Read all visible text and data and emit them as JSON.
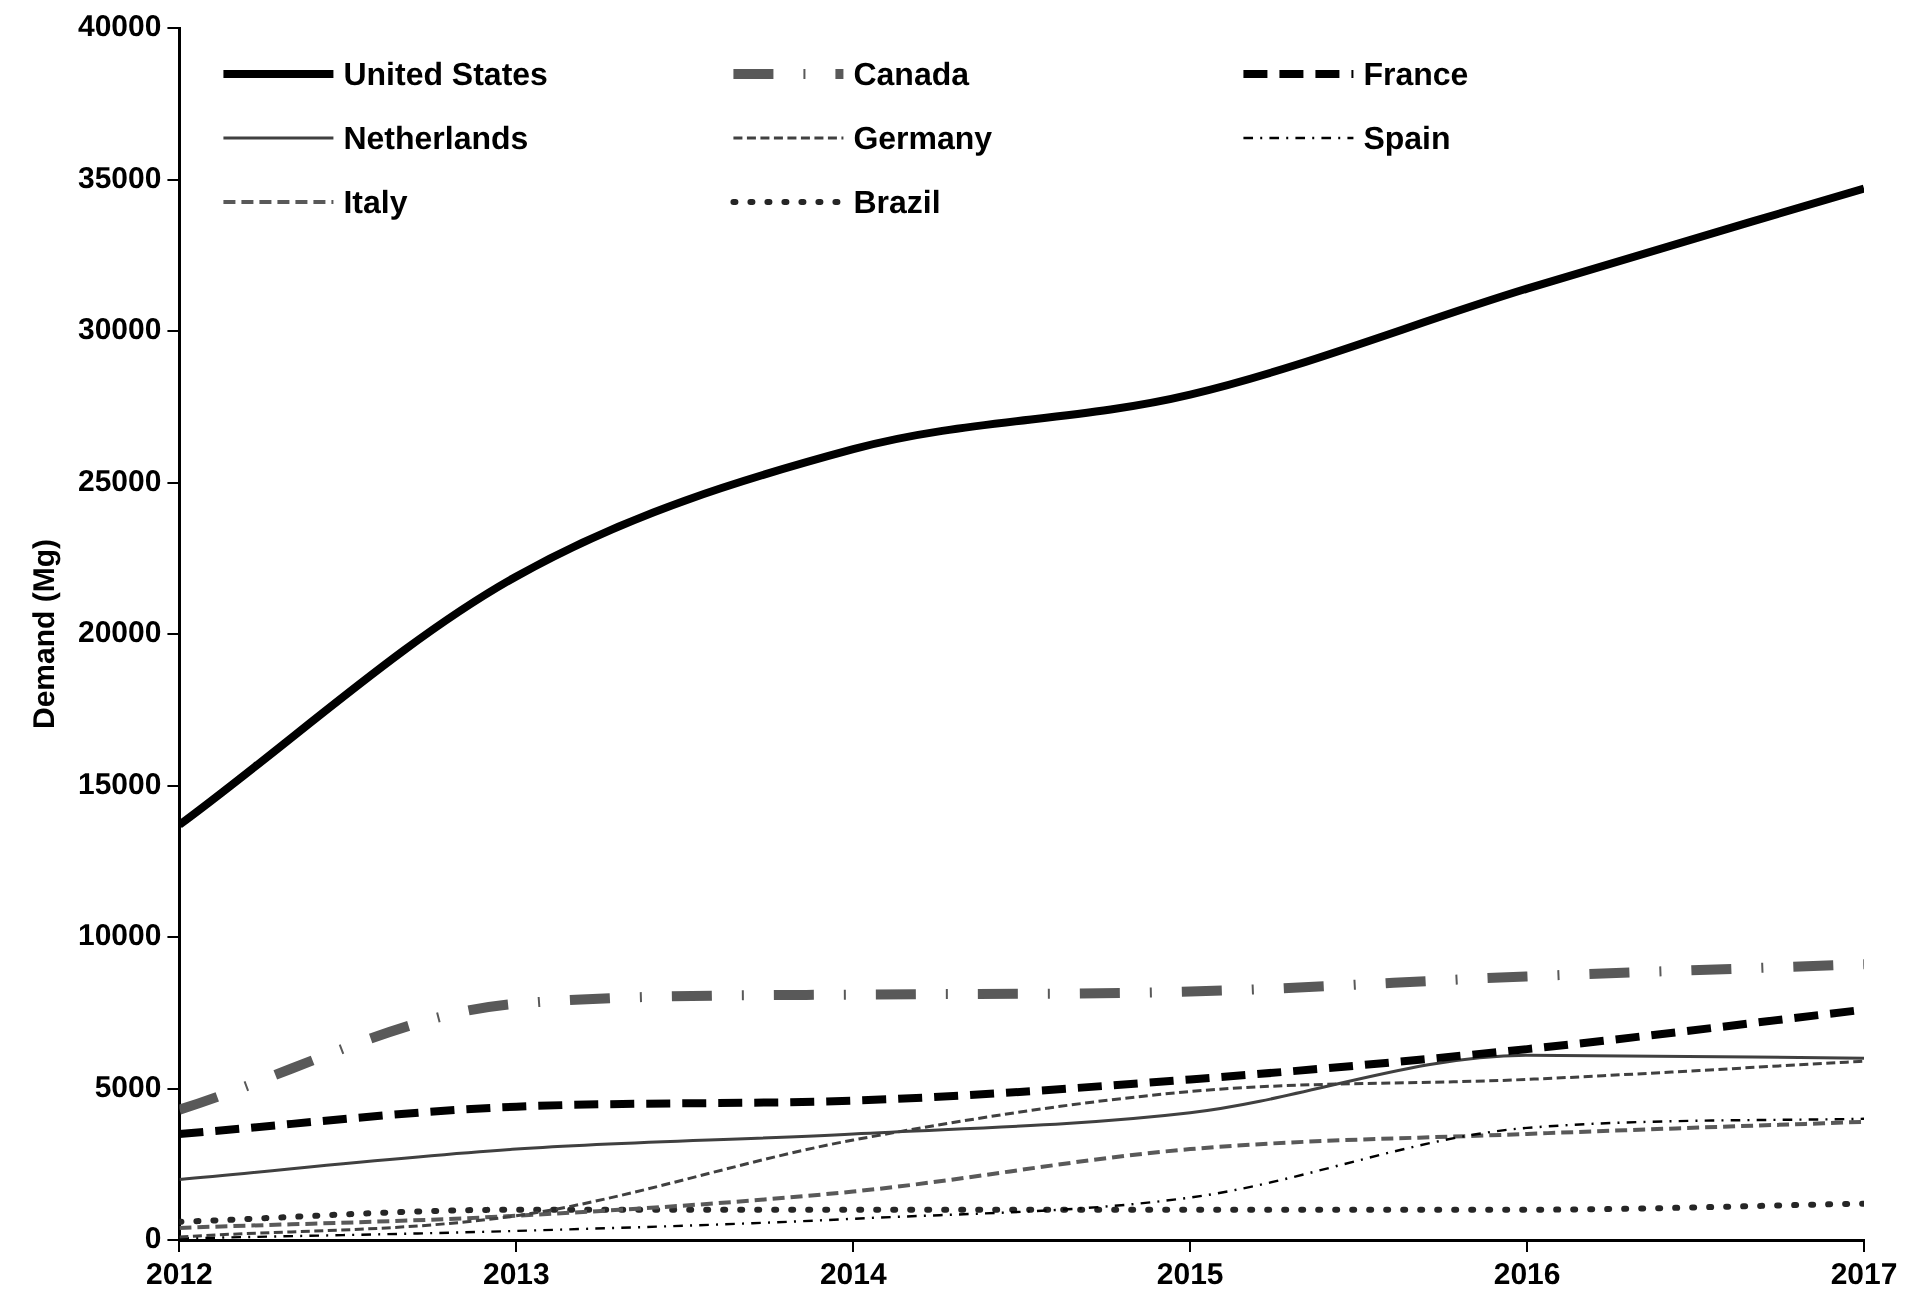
{
  "chart_data": {
    "type": "line",
    "ylabel": "Demand (Mg)",
    "x": [
      2012,
      2013,
      2014,
      2015,
      2016,
      2017
    ],
    "xlim": [
      2012,
      2017
    ],
    "xticks": [
      2012,
      2013,
      2014,
      2015,
      2016,
      2017
    ],
    "ylim": [
      0,
      40000
    ],
    "yticks": [
      0,
      5000,
      10000,
      15000,
      20000,
      25000,
      30000,
      35000,
      40000
    ],
    "grid": false,
    "legend": "top left",
    "marker": "none",
    "series": [
      {
        "name": "United States",
        "color": "#000000",
        "line_style": "solid",
        "values": [
          13700,
          21900,
          26100,
          27900,
          31400,
          34700
        ]
      },
      {
        "name": "Canada",
        "color": "#595959",
        "line_style": "dashdot",
        "values": [
          4300,
          7800,
          8100,
          8200,
          8700,
          9100
        ]
      },
      {
        "name": "France",
        "color": "#000000",
        "line_style": "dashed",
        "values": [
          3500,
          4400,
          4600,
          5300,
          6300,
          7600
        ]
      },
      {
        "name": "Netherlands",
        "color": "#404040",
        "line_style": "solid",
        "values": [
          2000,
          3000,
          3500,
          4200,
          6100,
          6000
        ]
      },
      {
        "name": "Germany",
        "color": "#404040",
        "line_style": "dashed",
        "values": [
          100,
          800,
          3300,
          4900,
          5300,
          5900
        ]
      },
      {
        "name": "Spain",
        "color": "#000000",
        "line_style": "dashdot",
        "values": [
          50,
          300,
          700,
          1400,
          3700,
          4000
        ]
      },
      {
        "name": "Italy",
        "color": "#595959",
        "line_style": "dashed",
        "values": [
          400,
          800,
          1600,
          3000,
          3500,
          3900
        ]
      },
      {
        "name": "Brazil",
        "color": "#262626",
        "line_style": "dotted",
        "values": [
          600,
          1000,
          1000,
          1000,
          1000,
          1200
        ]
      }
    ]
  }
}
